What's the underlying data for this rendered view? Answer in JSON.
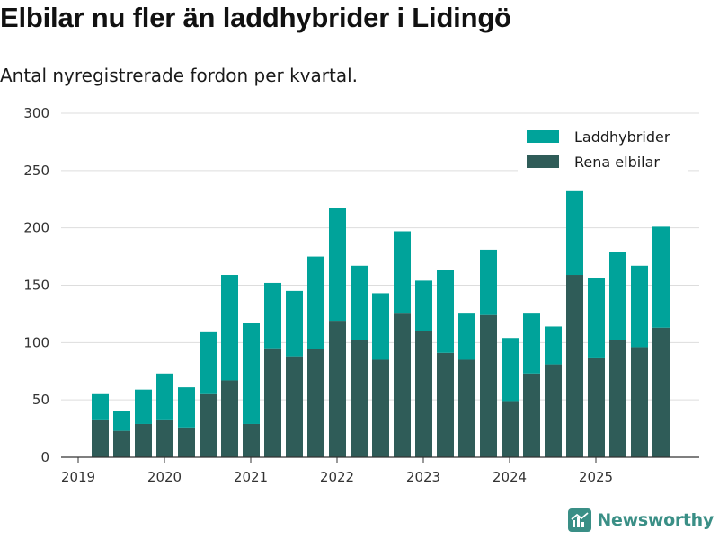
{
  "header": {
    "title": "Elbilar nu fler än laddhybrider i Lidingö",
    "subtitle": "Antal nyregistrerade fordon per kvartal."
  },
  "colors": {
    "phev": "#00a39a",
    "bev": "#2f5c58",
    "brand": "#3a8f86",
    "grid": "#dddddd",
    "axis": "#333333"
  },
  "chart_data": {
    "type": "bar",
    "stacked": true,
    "title": "Elbilar nu fler än laddhybrider i Lidingö",
    "subtitle": "Antal nyregistrerade fordon per kvartal.",
    "xlabel": "",
    "ylabel": "",
    "ylim": [
      0,
      300
    ],
    "yticks": [
      0,
      50,
      100,
      150,
      200,
      250,
      300
    ],
    "grid": true,
    "legend_position": "top-right",
    "x_ticks": [
      "2019",
      "2020",
      "2021",
      "2022",
      "2023",
      "2024",
      "2025"
    ],
    "categories": [
      "2019 Q2",
      "2019 Q3",
      "2019 Q4",
      "2020 Q1",
      "2020 Q2",
      "2020 Q3",
      "2020 Q4",
      "2021 Q1",
      "2021 Q2",
      "2021 Q3",
      "2021 Q4",
      "2022 Q1",
      "2022 Q2",
      "2022 Q3",
      "2022 Q4",
      "2023 Q1",
      "2023 Q2",
      "2023 Q3",
      "2023 Q4",
      "2024 Q1",
      "2024 Q2",
      "2024 Q3",
      "2024 Q4",
      "2025 Q1",
      "2025 Q2",
      "2025 Q3",
      "2025 Q4"
    ],
    "series": [
      {
        "name": "Rena elbilar",
        "values": [
          33,
          23,
          29,
          33,
          26,
          55,
          67,
          29,
          95,
          88,
          94,
          119,
          102,
          85,
          126,
          110,
          91,
          85,
          124,
          49,
          73,
          81,
          159,
          87,
          102,
          96,
          113
        ]
      },
      {
        "name": "Laddhybrider",
        "values": [
          22,
          17,
          30,
          40,
          35,
          54,
          92,
          88,
          57,
          57,
          81,
          98,
          65,
          58,
          71,
          44,
          72,
          41,
          57,
          55,
          53,
          33,
          73,
          69,
          77,
          71,
          88
        ]
      }
    ]
  },
  "legend": {
    "items": [
      {
        "label": "Laddhybrider"
      },
      {
        "label": "Rena elbilar"
      }
    ]
  },
  "brand": {
    "name": "Newsworthy"
  }
}
